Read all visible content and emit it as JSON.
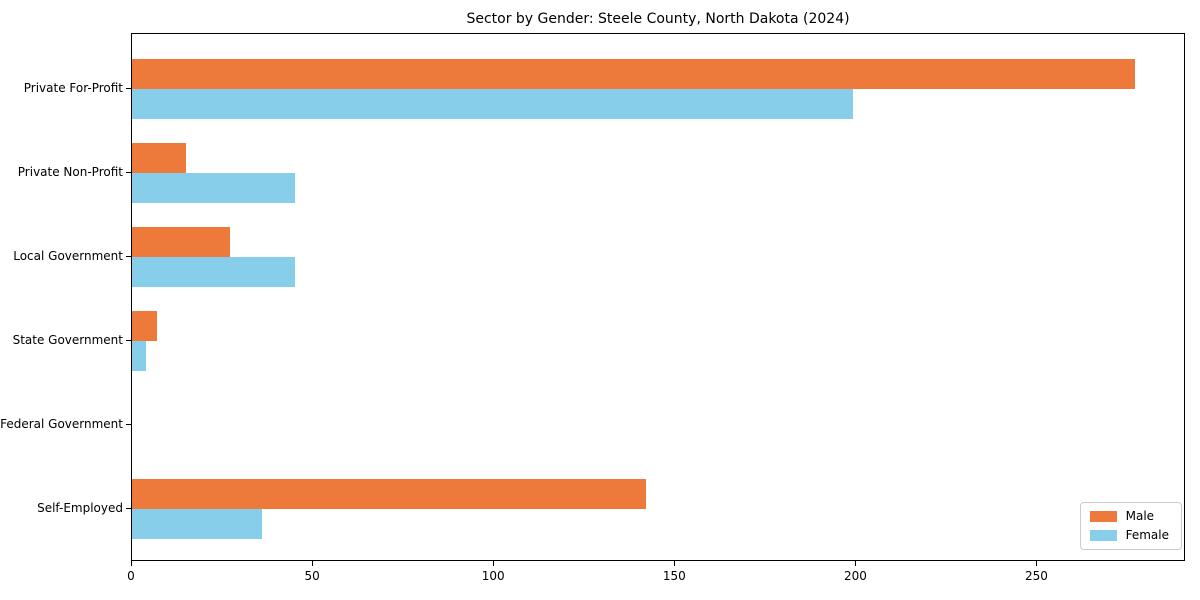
{
  "chart_data": {
    "type": "bar",
    "orientation": "horizontal",
    "title": "Sector by Gender: Steele County, North Dakota (2024)",
    "categories": [
      "Private For-Profit",
      "Private Non-Profit",
      "Local Government",
      "State Government",
      "Federal Government",
      "Self-Employed"
    ],
    "series": [
      {
        "name": "Male",
        "color": "#ED7A3B",
        "values": [
          277,
          15,
          27,
          7,
          0,
          142
        ]
      },
      {
        "name": "Female",
        "color": "#87CEEB",
        "values": [
          199,
          45,
          45,
          4,
          0,
          36
        ]
      }
    ],
    "xlabel": "",
    "ylabel": "",
    "xlim": [
      0,
      291
    ],
    "xticks": [
      0,
      50,
      100,
      150,
      200,
      250
    ],
    "xtick_labels": [
      "0",
      "50",
      "100",
      "150",
      "200",
      "250"
    ],
    "grid": false,
    "legend": {
      "position": "lower right",
      "entries": [
        "Male",
        "Female"
      ]
    },
    "background_color": "#ffffff",
    "axis_color": "#000000"
  }
}
